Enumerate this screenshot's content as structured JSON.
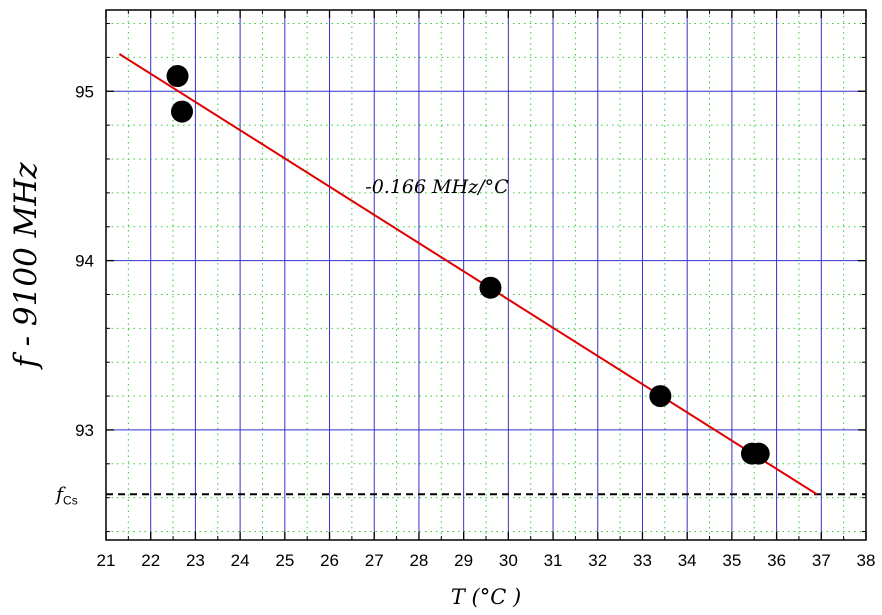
{
  "chart_data": {
    "type": "scatter",
    "xlabel": "T (°C )",
    "ylabel": "f - 9100 MHz",
    "xlim": [
      21,
      38
    ],
    "ylim": [
      92.35,
      95.48
    ],
    "x_ticks": [
      21,
      22,
      23,
      24,
      25,
      26,
      27,
      28,
      29,
      30,
      31,
      32,
      33,
      34,
      35,
      36,
      37,
      38
    ],
    "y_ticks": [
      93,
      94,
      95
    ],
    "grid": true,
    "colors": {
      "major_grid": "#3333cc",
      "minor_grid": "#33cc33",
      "fit_line": "#e00000",
      "points": "#000000",
      "reference_line": "#000000"
    },
    "series": [
      {
        "points": [
          {
            "x": 22.6,
            "y": 95.09
          },
          {
            "x": 22.7,
            "y": 94.88
          },
          {
            "x": 29.6,
            "y": 93.84
          },
          {
            "x": 33.4,
            "y": 93.2
          },
          {
            "x": 35.45,
            "y": 92.86
          },
          {
            "x": 35.6,
            "y": 92.86
          }
        ]
      }
    ],
    "fit_line": {
      "x": [
        21.3,
        36.9
      ],
      "y": [
        95.22,
        92.62
      ]
    },
    "annotation": {
      "text": "-0.166 MHz/°C",
      "x": 26.8,
      "y": 94.4
    },
    "reference_line": {
      "y": 92.62,
      "label_main": "f",
      "label_sub": "Cs"
    }
  }
}
